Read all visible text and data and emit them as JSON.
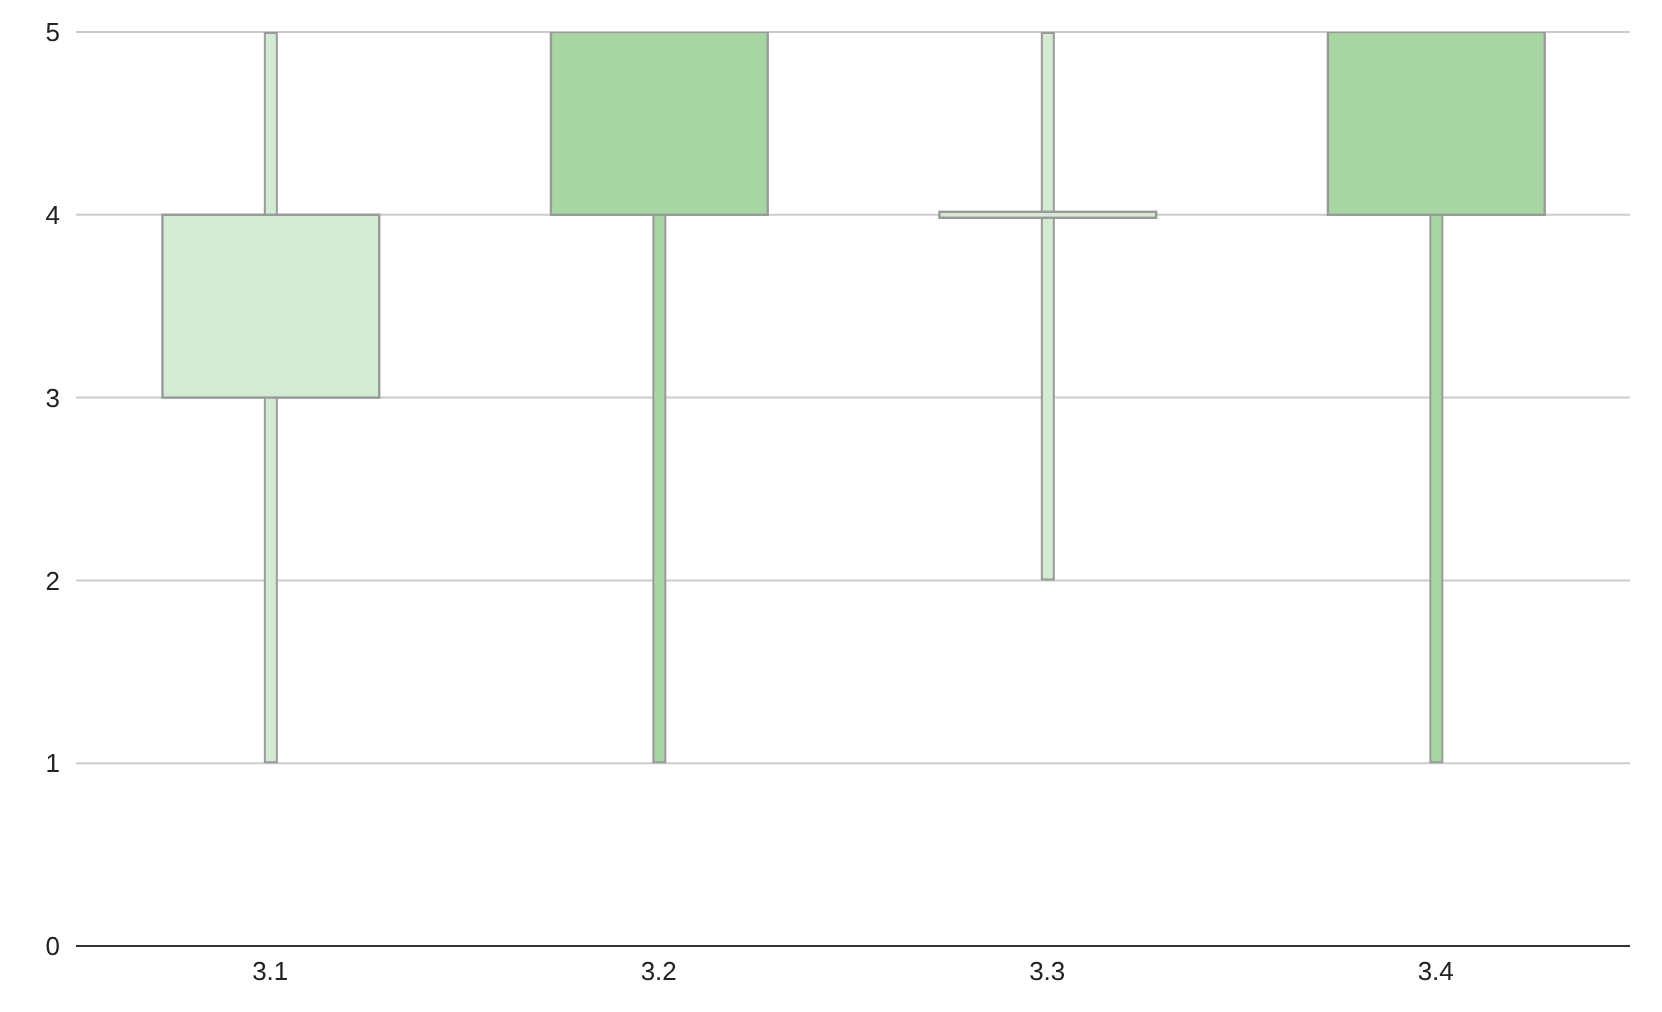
{
  "chart_data": {
    "type": "candlestick",
    "categories": [
      "3.1",
      "3.2",
      "3.3",
      "3.4"
    ],
    "ohlc": [
      [
        3,
        5,
        1,
        4
      ],
      [
        5,
        5,
        1,
        4
      ],
      [
        4,
        5,
        2,
        4
      ],
      [
        5,
        5,
        1,
        4
      ]
    ],
    "colors": [
      "#d4ebd3",
      "#a8d6a2",
      "#d4ebd3",
      "#a8d6a2"
    ],
    "ylim": [
      0,
      5
    ],
    "yticks": [
      0,
      1,
      2,
      3,
      4,
      5
    ],
    "grid": "y"
  }
}
